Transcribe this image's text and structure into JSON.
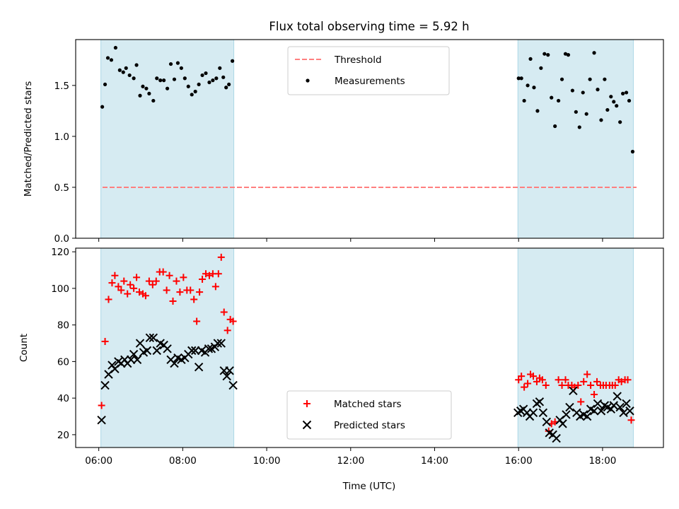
{
  "figure": {
    "title": "Flux total observing time = 5.92 h",
    "xlabel": "Time (UTC)"
  },
  "colors": {
    "span": "#add8e6",
    "threshold": "#ff7f7f",
    "measurement": "#000000",
    "matched": "#ff0000",
    "predicted": "#000000"
  },
  "chart_data": [
    {
      "type": "scatter",
      "panel": "top",
      "ylabel": "Matched/Predicted stars",
      "xlim": [
        "05:27",
        "19:27"
      ],
      "ylim": [
        0,
        1.95
      ],
      "yticks": [
        0.0,
        0.5,
        1.0,
        1.5
      ],
      "ytick_labels": [
        "0.0",
        "0.5",
        "1.0",
        "1.5"
      ],
      "observing_spans": [
        [
          "06:03",
          "09:13"
        ],
        [
          "15:59",
          "18:44"
        ]
      ],
      "threshold": {
        "name": "Threshold",
        "value": 0.5,
        "style": "dashed"
      },
      "legend_position": "upper center",
      "legend": [
        "Threshold",
        "Measurements"
      ],
      "series": [
        {
          "name": "Measurements",
          "marker": "dot",
          "points": [
            [
              "06:05",
              1.29
            ],
            [
              "06:09",
              1.51
            ],
            [
              "06:13",
              1.77
            ],
            [
              "06:18",
              1.75
            ],
            [
              "06:24",
              1.87
            ],
            [
              "06:30",
              1.65
            ],
            [
              "06:35",
              1.63
            ],
            [
              "06:39",
              1.67
            ],
            [
              "06:44",
              1.6
            ],
            [
              "06:50",
              1.57
            ],
            [
              "06:54",
              1.7
            ],
            [
              "06:59",
              1.4
            ],
            [
              "07:03",
              1.49
            ],
            [
              "07:08",
              1.47
            ],
            [
              "07:12",
              1.42
            ],
            [
              "07:18",
              1.35
            ],
            [
              "07:23",
              1.57
            ],
            [
              "07:28",
              1.55
            ],
            [
              "07:33",
              1.55
            ],
            [
              "07:38",
              1.47
            ],
            [
              "07:43",
              1.71
            ],
            [
              "07:48",
              1.56
            ],
            [
              "07:53",
              1.72
            ],
            [
              "07:58",
              1.67
            ],
            [
              "08:03",
              1.57
            ],
            [
              "08:08",
              1.49
            ],
            [
              "08:13",
              1.41
            ],
            [
              "08:18",
              1.44
            ],
            [
              "08:23",
              1.51
            ],
            [
              "08:28",
              1.6
            ],
            [
              "08:33",
              1.62
            ],
            [
              "08:38",
              1.53
            ],
            [
              "08:43",
              1.55
            ],
            [
              "08:48",
              1.57
            ],
            [
              "08:53",
              1.67
            ],
            [
              "08:58",
              1.58
            ],
            [
              "09:02",
              1.48
            ],
            [
              "09:06",
              1.51
            ],
            [
              "09:11",
              1.74
            ],
            [
              "16:00",
              1.57
            ],
            [
              "16:04",
              1.57
            ],
            [
              "16:08",
              1.35
            ],
            [
              "16:13",
              1.5
            ],
            [
              "16:17",
              1.76
            ],
            [
              "16:22",
              1.48
            ],
            [
              "16:27",
              1.25
            ],
            [
              "16:32",
              1.67
            ],
            [
              "16:37",
              1.81
            ],
            [
              "16:42",
              1.8
            ],
            [
              "16:47",
              1.38
            ],
            [
              "16:52",
              1.1
            ],
            [
              "16:57",
              1.35
            ],
            [
              "17:02",
              1.56
            ],
            [
              "17:07",
              1.81
            ],
            [
              "17:11",
              1.8
            ],
            [
              "17:17",
              1.45
            ],
            [
              "17:22",
              1.24
            ],
            [
              "17:27",
              1.09
            ],
            [
              "17:32",
              1.43
            ],
            [
              "17:37",
              1.22
            ],
            [
              "17:42",
              1.56
            ],
            [
              "17:48",
              1.82
            ],
            [
              "17:53",
              1.46
            ],
            [
              "17:58",
              1.16
            ],
            [
              "18:03",
              1.56
            ],
            [
              "18:07",
              1.26
            ],
            [
              "18:12",
              1.39
            ],
            [
              "18:16",
              1.34
            ],
            [
              "18:20",
              1.3
            ],
            [
              "18:25",
              1.14
            ],
            [
              "18:29",
              1.42
            ],
            [
              "18:34",
              1.43
            ],
            [
              "18:38",
              1.35
            ],
            [
              "18:43",
              0.85
            ]
          ]
        }
      ]
    },
    {
      "type": "scatter",
      "panel": "bottom",
      "ylabel": "Count",
      "xlim": [
        "05:27",
        "19:27"
      ],
      "ylim": [
        13,
        122
      ],
      "yticks": [
        20,
        40,
        60,
        80,
        100,
        120
      ],
      "xticks": [
        "06:00",
        "08:00",
        "10:00",
        "12:00",
        "14:00",
        "16:00",
        "18:00"
      ],
      "observing_spans": [
        [
          "06:03",
          "09:13"
        ],
        [
          "15:59",
          "18:44"
        ]
      ],
      "legend_position": "lower center",
      "legend": [
        "Matched stars",
        "Predicted stars"
      ],
      "series": [
        {
          "name": "Matched stars",
          "marker": "plus",
          "points": [
            [
              "06:04",
              36
            ],
            [
              "06:09",
              71
            ],
            [
              "06:14",
              94
            ],
            [
              "06:19",
              103
            ],
            [
              "06:23",
              107
            ],
            [
              "06:28",
              101
            ],
            [
              "06:32",
              99
            ],
            [
              "06:36",
              104
            ],
            [
              "06:41",
              97
            ],
            [
              "06:45",
              102
            ],
            [
              "06:50",
              100
            ],
            [
              "06:54",
              106
            ],
            [
              "06:58",
              98
            ],
            [
              "07:03",
              97
            ],
            [
              "07:07",
              96
            ],
            [
              "07:12",
              104
            ],
            [
              "07:17",
              102
            ],
            [
              "07:22",
              104
            ],
            [
              "07:27",
              109
            ],
            [
              "07:32",
              109
            ],
            [
              "07:37",
              99
            ],
            [
              "07:41",
              107
            ],
            [
              "07:46",
              93
            ],
            [
              "07:51",
              104
            ],
            [
              "07:56",
              98
            ],
            [
              "08:01",
              106
            ],
            [
              "08:06",
              99
            ],
            [
              "08:11",
              99
            ],
            [
              "08:16",
              94
            ],
            [
              "08:20",
              82
            ],
            [
              "08:24",
              98
            ],
            [
              "08:28",
              105
            ],
            [
              "08:33",
              108
            ],
            [
              "08:38",
              107
            ],
            [
              "08:43",
              108
            ],
            [
              "08:47",
              101
            ],
            [
              "08:51",
              108
            ],
            [
              "08:55",
              117
            ],
            [
              "08:59",
              87
            ],
            [
              "09:04",
              77
            ],
            [
              "09:08",
              83
            ],
            [
              "09:12",
              82
            ],
            [
              "16:00",
              50
            ],
            [
              "16:04",
              52
            ],
            [
              "16:08",
              46
            ],
            [
              "16:13",
              48
            ],
            [
              "16:17",
              53
            ],
            [
              "16:21",
              52
            ],
            [
              "16:26",
              49
            ],
            [
              "16:30",
              51
            ],
            [
              "16:34",
              50
            ],
            [
              "16:39",
              47
            ],
            [
              "16:43",
              22
            ],
            [
              "16:47",
              26
            ],
            [
              "16:52",
              27
            ],
            [
              "16:57",
              50
            ],
            [
              "17:02",
              47
            ],
            [
              "17:07",
              50
            ],
            [
              "17:11",
              47
            ],
            [
              "17:16",
              47
            ],
            [
              "17:20",
              46
            ],
            [
              "17:25",
              47
            ],
            [
              "17:29",
              38
            ],
            [
              "17:33",
              49
            ],
            [
              "17:38",
              53
            ],
            [
              "17:43",
              47
            ],
            [
              "17:48",
              42
            ],
            [
              "17:52",
              49
            ],
            [
              "17:57",
              47
            ],
            [
              "18:01",
              47
            ],
            [
              "18:05",
              47
            ],
            [
              "18:10",
              47
            ],
            [
              "18:14",
              47
            ],
            [
              "18:18",
              47
            ],
            [
              "18:23",
              50
            ],
            [
              "18:27",
              49
            ],
            [
              "18:32",
              50
            ],
            [
              "18:36",
              50
            ],
            [
              "18:41",
              28
            ]
          ]
        },
        {
          "name": "Predicted stars",
          "marker": "x",
          "points": [
            [
              "06:04",
              28
            ],
            [
              "06:09",
              47
            ],
            [
              "06:14",
              53
            ],
            [
              "06:19",
              58
            ],
            [
              "06:23",
              56
            ],
            [
              "06:28",
              60
            ],
            [
              "06:32",
              59
            ],
            [
              "06:37",
              61
            ],
            [
              "06:41",
              59
            ],
            [
              "06:46",
              61
            ],
            [
              "06:50",
              64
            ],
            [
              "06:55",
              61
            ],
            [
              "06:59",
              70
            ],
            [
              "07:04",
              65
            ],
            [
              "07:09",
              66
            ],
            [
              "07:13",
              73
            ],
            [
              "07:18",
              73
            ],
            [
              "07:23",
              66
            ],
            [
              "07:28",
              70
            ],
            [
              "07:33",
              69
            ],
            [
              "07:38",
              67
            ],
            [
              "07:43",
              61
            ],
            [
              "07:48",
              59
            ],
            [
              "07:53",
              62
            ],
            [
              "07:58",
              61
            ],
            [
              "08:03",
              62
            ],
            [
              "08:08",
              64
            ],
            [
              "08:13",
              66
            ],
            [
              "08:18",
              66
            ],
            [
              "08:23",
              57
            ],
            [
              "08:27",
              66
            ],
            [
              "08:32",
              65
            ],
            [
              "08:37",
              67
            ],
            [
              "08:41",
              67
            ],
            [
              "08:46",
              68
            ],
            [
              "08:50",
              70
            ],
            [
              "08:55",
              70
            ],
            [
              "08:59",
              55
            ],
            [
              "09:03",
              52
            ],
            [
              "09:07",
              55
            ],
            [
              "09:12",
              47
            ],
            [
              "15:59",
              32
            ],
            [
              "16:03",
              33
            ],
            [
              "16:07",
              34
            ],
            [
              "16:12",
              32
            ],
            [
              "16:16",
              30
            ],
            [
              "16:21",
              32
            ],
            [
              "16:26",
              37
            ],
            [
              "16:30",
              38
            ],
            [
              "16:35",
              32
            ],
            [
              "16:40",
              27
            ],
            [
              "16:44",
              21
            ],
            [
              "16:49",
              20
            ],
            [
              "16:54",
              18
            ],
            [
              "16:59",
              28
            ],
            [
              "17:03",
              26
            ],
            [
              "17:08",
              31
            ],
            [
              "17:13",
              35
            ],
            [
              "17:18",
              44
            ],
            [
              "17:23",
              32
            ],
            [
              "17:28",
              30
            ],
            [
              "17:33",
              31
            ],
            [
              "17:38",
              30
            ],
            [
              "17:43",
              34
            ],
            [
              "17:48",
              33
            ],
            [
              "17:53",
              37
            ],
            [
              "17:58",
              33
            ],
            [
              "18:03",
              36
            ],
            [
              "18:07",
              35
            ],
            [
              "18:12",
              34
            ],
            [
              "18:16",
              36
            ],
            [
              "18:21",
              41
            ],
            [
              "18:25",
              35
            ],
            [
              "18:30",
              32
            ],
            [
              "18:34",
              37
            ],
            [
              "18:39",
              33
            ]
          ]
        }
      ]
    }
  ]
}
